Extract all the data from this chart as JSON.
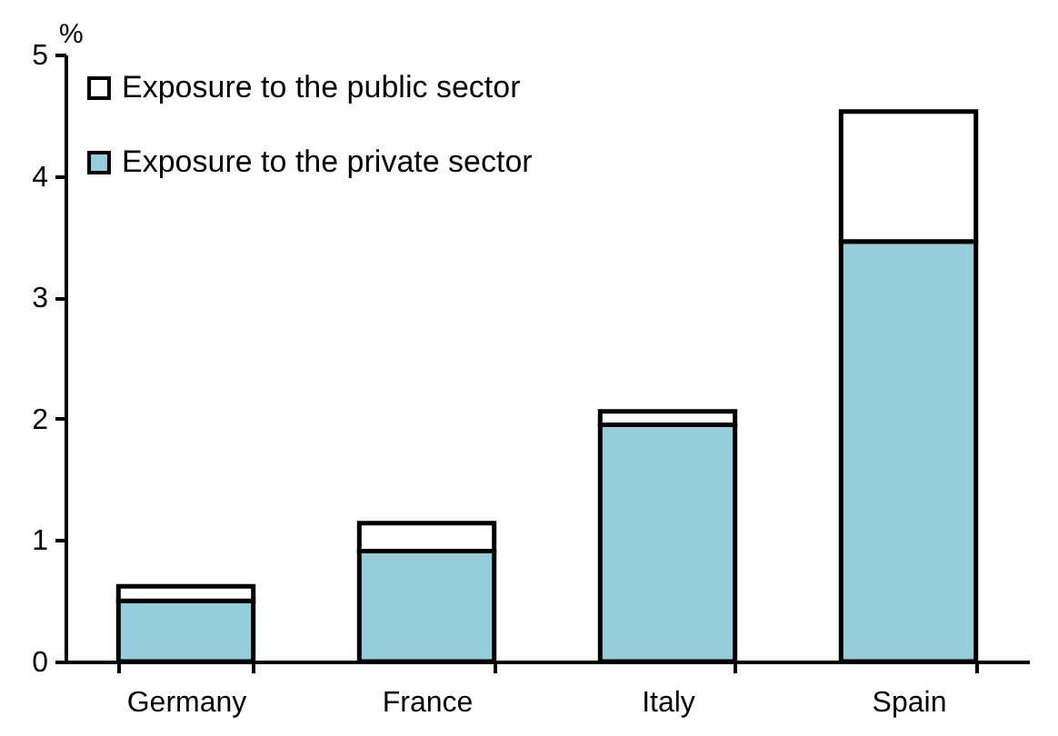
{
  "chart_data": {
    "type": "bar",
    "stacked": true,
    "ylabel": "%",
    "categories": [
      "Germany",
      "France",
      "Italy",
      "Spain"
    ],
    "series": [
      {
        "name": "Exposure to the private sector",
        "color": "#96cddd",
        "values": [
          0.5,
          0.91,
          1.95,
          3.46
        ]
      },
      {
        "name": "Exposure to the public sector",
        "color": "#ffffff",
        "values": [
          0.12,
          0.23,
          0.11,
          1.07
        ]
      }
    ],
    "ylim": [
      0,
      5
    ],
    "yticks": [
      0,
      1,
      2,
      3,
      4,
      5
    ],
    "grid": false,
    "legend": "top left"
  }
}
